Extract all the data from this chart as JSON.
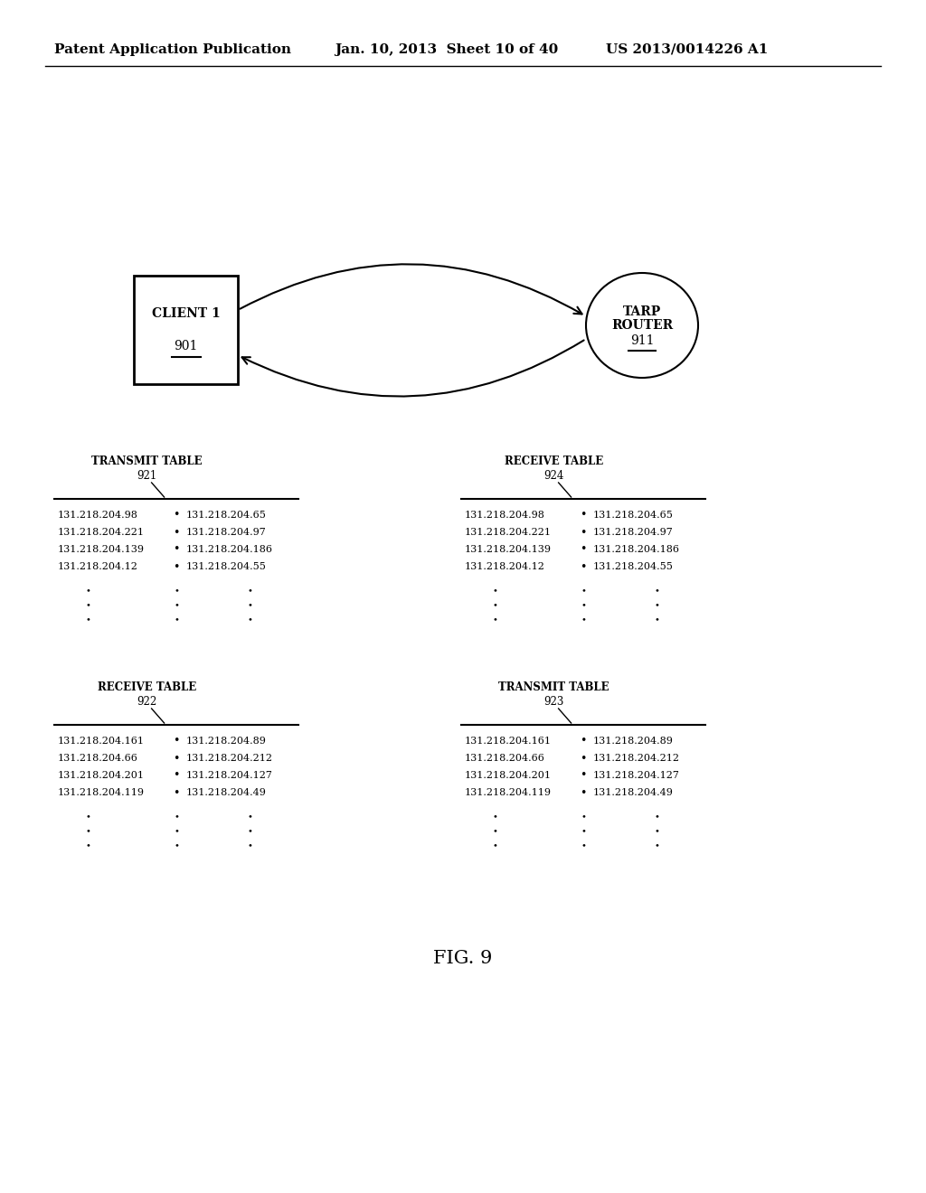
{
  "header_left": "Patent Application Publication",
  "header_center": "Jan. 10, 2013  Sheet 10 of 40",
  "header_right": "US 2013/0014226 A1",
  "client_label": "CLIENT 1",
  "client_num": "901",
  "router_num": "911",
  "table1_title": "TRANSMIT TABLE",
  "table1_num": "921",
  "table2_title": "RECEIVE TABLE",
  "table2_num": "924",
  "table3_title": "RECEIVE TABLE",
  "table3_num": "922",
  "table4_title": "TRANSMIT TABLE",
  "table4_num": "923",
  "table1_left": [
    "131.218.204.98",
    "131.218.204.221",
    "131.218.204.139",
    "131.218.204.12"
  ],
  "table1_right": [
    "131.218.204.65",
    "131.218.204.97",
    "131.218.204.186",
    "131.218.204.55"
  ],
  "table2_left": [
    "131.218.204.98",
    "131.218.204.221",
    "131.218.204.139",
    "131.218.204.12"
  ],
  "table2_right": [
    "131.218.204.65",
    "131.218.204.97",
    "131.218.204.186",
    "131.218.204.55"
  ],
  "table3_left": [
    "131.218.204.161",
    "131.218.204.66",
    "131.218.204.201",
    "131.218.204.119"
  ],
  "table3_right": [
    "131.218.204.89",
    "131.218.204.212",
    "131.218.204.127",
    "131.218.204.49"
  ],
  "table4_left": [
    "131.218.204.161",
    "131.218.204.66",
    "131.218.204.201",
    "131.218.204.119"
  ],
  "table4_right": [
    "131.218.204.89",
    "131.218.204.212",
    "131.218.204.127",
    "131.218.204.49"
  ],
  "fig_label": "FIG. 9",
  "bg_color": "#ffffff",
  "text_color": "#000000"
}
